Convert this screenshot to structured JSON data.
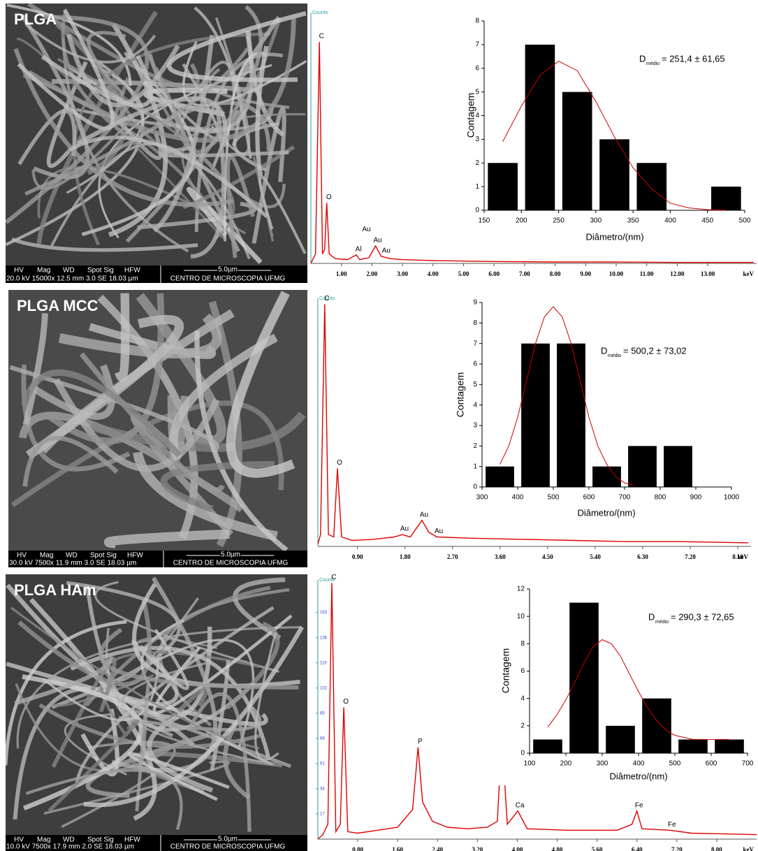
{
  "panels": [
    {
      "label": "PLGA",
      "sem_headers": [
        "HV",
        "Mag",
        "WD",
        "Spot Sig",
        "HFW"
      ],
      "sem_values": "20.0 kV 15000x 12.5 mm  3.0  SE 18.03 µm",
      "scale": "5.0µm",
      "lab": "CENTRO DE MICROSCOPIA UFMG"
    },
    {
      "label": "PLGA MCC",
      "sem_headers": [
        "HV",
        "Mag",
        "WD",
        "Spot Sig",
        "HFW"
      ],
      "sem_values": "30.0 kV 7500x 11.9 mm  3.0  SE 18.03 µm",
      "scale": "5.0µm",
      "lab": "CENTRO DE MICROSCOPIA UFMG"
    },
    {
      "label": "PLGA HAm",
      "sem_headers": [
        "HV",
        "Mag",
        "WD",
        "Spot Sig",
        "HFW"
      ],
      "sem_values": "10.0 kV 7500x 17.9 mm  2.0  SE 18.03 µm",
      "scale": "5.0µm",
      "lab": "CENTRO DE MICROSCOPIA UFMG"
    }
  ],
  "chart_data": [
    {
      "type": "line",
      "y_label": "Counts",
      "x_label": "keV",
      "x": [
        0,
        0.15,
        0.28,
        0.38,
        0.45,
        0.52,
        0.6,
        0.8,
        1.2,
        1.49,
        1.6,
        1.9,
        2.12,
        2.3,
        2.6,
        3,
        4,
        6,
        8,
        10,
        12,
        14.5
      ],
      "series": [
        {
          "color": "#e00000",
          "values": [
            0,
            0.2,
            4.68,
            0.2,
            0.3,
            1.28,
            0.2,
            0.1,
            0.08,
            0.18,
            0.08,
            0.12,
            0.37,
            0.15,
            0.1,
            0.08,
            0.06,
            0.04,
            0.03,
            0.03,
            0.02,
            0.02
          ]
        }
      ],
      "annotations": [
        {
          "text": "C",
          "x": 0.28,
          "y": 4.68
        },
        {
          "text": "O",
          "x": 0.52,
          "y": 1.28
        },
        {
          "text": "Al",
          "x": 1.49,
          "y": 0.18
        },
        {
          "text": "Au",
          "x": 1.75,
          "y": 0.6
        },
        {
          "text": "Au",
          "x": 2.12,
          "y": 0.37
        },
        {
          "text": "Au",
          "x": 2.4,
          "y": 0.15
        }
      ],
      "xlim": [
        0,
        14.6
      ],
      "ylim": [
        0,
        5.3
      ],
      "xticks": [
        {
          "value": 1,
          "label": "1.00"
        },
        {
          "value": 2,
          "label": "2.00"
        },
        {
          "value": 3,
          "label": "3.00"
        },
        {
          "value": 4,
          "label": "4.00"
        },
        {
          "value": 5,
          "label": "5.00"
        },
        {
          "value": 6,
          "label": "6.00"
        },
        {
          "value": 7,
          "label": "7.00"
        },
        {
          "value": 8,
          "label": "8.00"
        },
        {
          "value": 9,
          "label": "9.00"
        },
        {
          "value": 10,
          "label": "10.00"
        },
        {
          "value": 11,
          "label": "11.00"
        },
        {
          "value": 12,
          "label": "12.00"
        },
        {
          "value": 13,
          "label": "13.00"
        }
      ]
    },
    {
      "type": "histogram",
      "y_label": "Contagem",
      "x_label": "Diâmetro/(nm)",
      "color": "#000000",
      "bins": [
        150,
        200,
        250,
        300,
        350,
        400,
        450,
        500
      ],
      "counts": [
        2,
        7,
        5,
        3,
        2,
        0,
        1
      ],
      "fit": {
        "color": "#cc0000",
        "x": [
          175,
          200,
          225,
          250,
          275,
          300,
          325,
          350,
          375,
          400,
          425,
          450,
          475
        ],
        "values": [
          2.9,
          4.4,
          5.7,
          6.3,
          5.9,
          4.6,
          3.1,
          1.8,
          0.9,
          0.3,
          0.1,
          0.03,
          0
        ]
      },
      "annotation": {
        "symbol": "D",
        "subscript": "médio",
        "text": "= 251,4 ± 61,65"
      },
      "xlim": [
        150,
        500
      ],
      "xticks": [
        150,
        200,
        250,
        300,
        350,
        400,
        450,
        500
      ],
      "ylim": [
        0,
        8
      ],
      "yticks": [
        0,
        1,
        2,
        3,
        4,
        5,
        6,
        7,
        8
      ]
    },
    {
      "type": "line",
      "y_label": "Counts",
      "x_label": "keV",
      "x": [
        0.15,
        0.2,
        0.28,
        0.35,
        0.45,
        0.52,
        0.6,
        0.8,
        1.2,
        1.6,
        1.75,
        1.9,
        2.12,
        2.25,
        2.4,
        3,
        4,
        5,
        6,
        7,
        8.3
      ],
      "series": [
        {
          "color": "#e00000",
          "values": [
            0.02,
            0.1,
            2.05,
            0.1,
            0.08,
            0.66,
            0.08,
            0.05,
            0.06,
            0.08,
            0.1,
            0.08,
            0.22,
            0.12,
            0.08,
            0.07,
            0.06,
            0.05,
            0.04,
            0.04,
            0.03
          ]
        }
      ],
      "annotations": [
        {
          "text": "C",
          "x": 0.28,
          "y": 2.05
        },
        {
          "text": "O",
          "x": 0.52,
          "y": 0.66
        },
        {
          "text": "Au",
          "x": 1.75,
          "y": 0.1
        },
        {
          "text": "Au",
          "x": 2.12,
          "y": 0.22
        },
        {
          "text": "Au",
          "x": 2.4,
          "y": 0.08
        }
      ],
      "xlim": [
        0.15,
        8.35
      ],
      "ylim": [
        0,
        2.1
      ],
      "xticks": [
        {
          "value": 0.9,
          "label": "0.90"
        },
        {
          "value": 1.8,
          "label": "1.80"
        },
        {
          "value": 2.7,
          "label": "2.70"
        },
        {
          "value": 3.6,
          "label": "3.60"
        },
        {
          "value": 4.5,
          "label": "4.50"
        },
        {
          "value": 5.4,
          "label": "5.40"
        },
        {
          "value": 6.3,
          "label": "6.30"
        },
        {
          "value": 7.2,
          "label": "7.20"
        },
        {
          "value": 8.1,
          "label": "8.10"
        }
      ]
    },
    {
      "type": "histogram",
      "y_label": "Contagem",
      "x_label": "Diâmetro/(nm)",
      "color": "#000000",
      "bins": [
        300,
        400,
        500,
        600,
        700,
        800,
        900
      ],
      "counts": [
        1,
        7,
        7,
        1,
        2,
        2
      ],
      "fit": {
        "color": "#cc0000",
        "x": [
          350,
          375,
          400,
          425,
          450,
          475,
          500,
          525,
          550,
          575,
          600,
          625,
          650,
          675,
          700,
          725
        ],
        "values": [
          1.1,
          2.0,
          3.4,
          5.2,
          7.0,
          8.3,
          8.8,
          8.3,
          7.0,
          5.2,
          3.4,
          2.0,
          1.1,
          0.5,
          0.2,
          0.1
        ]
      },
      "annotation": {
        "symbol": "D",
        "subscript": "médio",
        "text": "= 500,2 ± 73,02"
      },
      "xlim": [
        300,
        1000
      ],
      "xticks": [
        300,
        400,
        500,
        600,
        700,
        800,
        900,
        1000
      ],
      "ylim": [
        0,
        9
      ],
      "yticks": [
        0,
        1,
        2,
        3,
        4,
        5,
        6,
        7,
        8,
        9
      ]
    },
    {
      "type": "line",
      "y_label": "Counts",
      "x_label": "keV",
      "x": [
        0,
        0.1,
        0.2,
        0.28,
        0.36,
        0.45,
        0.52,
        0.6,
        0.8,
        1.2,
        1.6,
        1.9,
        2.01,
        2.1,
        2.3,
        2.6,
        3,
        3.4,
        3.6,
        3.69,
        3.8,
        4.01,
        4.2,
        5,
        6,
        6.3,
        6.4,
        6.5,
        7.06,
        7.5,
        8.8
      ],
      "series": [
        {
          "color": "#e00000",
          "values": [
            0,
            3,
            10,
            173,
            5,
            10,
            89,
            5,
            4,
            6,
            8,
            20,
            62,
            25,
            12,
            8,
            7,
            8,
            12,
            69,
            10,
            19,
            7,
            6,
            6,
            10,
            19,
            7,
            6,
            4,
            3
          ]
        }
      ],
      "annotations": [
        {
          "text": "C",
          "x": 0.28,
          "y": 173
        },
        {
          "text": "O",
          "x": 0.52,
          "y": 89
        },
        {
          "text": "P",
          "x": 2.01,
          "y": 62
        },
        {
          "text": "Ca",
          "x": 3.69,
          "y": 69
        },
        {
          "text": "Ca",
          "x": 4.01,
          "y": 19
        },
        {
          "text": "Fe",
          "x": 6.4,
          "y": 19
        },
        {
          "text": "Fe",
          "x": 7.06,
          "y": 6
        }
      ],
      "xlim": [
        0,
        8.8
      ],
      "ylim": [
        0,
        175
      ],
      "yticks": [
        17,
        34,
        51,
        68,
        85,
        102,
        119,
        136,
        153
      ],
      "xticks": [
        {
          "value": 0.8,
          "label": "0.80"
        },
        {
          "value": 1.6,
          "label": "1.60"
        },
        {
          "value": 2.4,
          "label": "2.40"
        },
        {
          "value": 3.2,
          "label": "3.20"
        },
        {
          "value": 4,
          "label": "4.00"
        },
        {
          "value": 4.8,
          "label": "4.80"
        },
        {
          "value": 5.6,
          "label": "5.60"
        },
        {
          "value": 6.4,
          "label": "6.40"
        },
        {
          "value": 7.2,
          "label": "7.20"
        },
        {
          "value": 8,
          "label": "8.00"
        }
      ]
    },
    {
      "type": "histogram",
      "y_label": "Contagem",
      "x_label": "Diâmetro/(nm)",
      "color": "#000000",
      "bins": [
        100,
        200,
        300,
        400,
        500,
        600,
        700
      ],
      "counts": [
        1,
        11,
        2,
        4,
        1,
        1
      ],
      "fit": {
        "color": "#cc0000",
        "x": [
          150,
          175,
          200,
          225,
          250,
          275,
          300,
          325,
          350,
          375,
          400,
          425,
          450,
          475,
          500,
          550,
          600,
          650
        ],
        "values": [
          1.9,
          2.8,
          3.9,
          5.2,
          6.6,
          7.8,
          8.3,
          8.0,
          7.1,
          5.8,
          4.5,
          3.3,
          2.4,
          1.7,
          1.3,
          1.0,
          1.0,
          1.0
        ]
      },
      "annotation": {
        "symbol": "D",
        "subscript": "médio",
        "text": "= 290,3 ± 72,65"
      },
      "xlim": [
        100,
        700
      ],
      "xticks": [
        100,
        200,
        300,
        400,
        500,
        600,
        700
      ],
      "ylim": [
        0,
        12
      ],
      "yticks": [
        0,
        2,
        4,
        6,
        8,
        10,
        12
      ]
    }
  ]
}
